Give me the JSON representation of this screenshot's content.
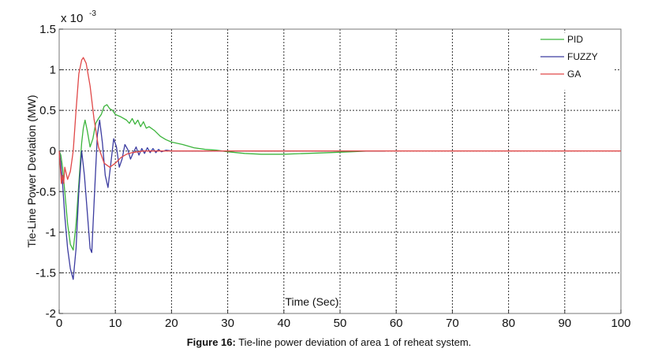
{
  "chart_data": {
    "type": "line",
    "title": "",
    "xlabel": "Time (Sec)",
    "ylabel": "Tie-Line Power Deviation (MW)",
    "y_exponent_label": "x 10",
    "y_exponent_power": "-3",
    "xlim": [
      0,
      100
    ],
    "ylim": [
      -2,
      1.5
    ],
    "x_ticks": [
      0,
      10,
      20,
      30,
      40,
      50,
      60,
      70,
      80,
      90,
      100
    ],
    "x_tick_labels": [
      "0",
      "10",
      "20",
      "30",
      "40",
      "50",
      "60",
      "70",
      "80",
      "90",
      "100"
    ],
    "y_ticks": [
      -2,
      -1.5,
      -1,
      -0.5,
      0,
      0.5,
      1,
      1.5
    ],
    "y_tick_labels": [
      "-2",
      "-1.5",
      "-1",
      "-0.5",
      "0",
      "0.5",
      "1",
      "1.5"
    ],
    "grid": true,
    "legend_position": "top-right",
    "series": [
      {
        "name": "PID",
        "color": "#3cb43c",
        "points": [
          [
            0,
            0
          ],
          [
            0.3,
            -0.05
          ],
          [
            0.6,
            -0.2
          ],
          [
            1,
            -0.5
          ],
          [
            1.5,
            -0.9
          ],
          [
            2,
            -1.15
          ],
          [
            2.5,
            -1.22
          ],
          [
            3,
            -0.9
          ],
          [
            3.5,
            -0.4
          ],
          [
            4,
            0.1
          ],
          [
            4.3,
            0.28
          ],
          [
            4.6,
            0.38
          ],
          [
            5,
            0.25
          ],
          [
            5.5,
            0.05
          ],
          [
            6,
            0.15
          ],
          [
            6.5,
            0.34
          ],
          [
            7,
            0.4
          ],
          [
            7.5,
            0.45
          ],
          [
            8,
            0.55
          ],
          [
            8.5,
            0.57
          ],
          [
            9,
            0.52
          ],
          [
            9.5,
            0.5
          ],
          [
            10,
            0.45
          ],
          [
            11,
            0.42
          ],
          [
            12,
            0.38
          ],
          [
            12.5,
            0.34
          ],
          [
            13,
            0.4
          ],
          [
            13.5,
            0.33
          ],
          [
            14,
            0.38
          ],
          [
            14.5,
            0.3
          ],
          [
            15,
            0.36
          ],
          [
            15.5,
            0.28
          ],
          [
            16,
            0.3
          ],
          [
            17,
            0.25
          ],
          [
            18,
            0.18
          ],
          [
            19,
            0.14
          ],
          [
            20,
            0.11
          ],
          [
            22,
            0.08
          ],
          [
            24,
            0.04
          ],
          [
            26,
            0.02
          ],
          [
            28,
            0.01
          ],
          [
            30,
            -0.01
          ],
          [
            33,
            -0.03
          ],
          [
            36,
            -0.04
          ],
          [
            40,
            -0.04
          ],
          [
            44,
            -0.03
          ],
          [
            48,
            -0.02
          ],
          [
            52,
            -0.01
          ],
          [
            55,
            0
          ],
          [
            58,
            0
          ]
        ]
      },
      {
        "name": "FUZZY",
        "color": "#3c3ca0",
        "points": [
          [
            0,
            0
          ],
          [
            0.3,
            -0.15
          ],
          [
            0.6,
            -0.4
          ],
          [
            1,
            -0.8
          ],
          [
            1.5,
            -1.2
          ],
          [
            2,
            -1.45
          ],
          [
            2.5,
            -1.58
          ],
          [
            3,
            -1.2
          ],
          [
            3.5,
            -0.5
          ],
          [
            4,
            0
          ],
          [
            4.5,
            -0.3
          ],
          [
            5,
            -0.75
          ],
          [
            5.5,
            -1.2
          ],
          [
            5.8,
            -1.25
          ],
          [
            6.3,
            -0.5
          ],
          [
            6.8,
            0.2
          ],
          [
            7.2,
            0.38
          ],
          [
            7.7,
            0.1
          ],
          [
            8.2,
            -0.3
          ],
          [
            8.7,
            -0.45
          ],
          [
            9.2,
            -0.15
          ],
          [
            9.7,
            0.15
          ],
          [
            10.2,
            0.05
          ],
          [
            10.7,
            -0.2
          ],
          [
            11.2,
            -0.1
          ],
          [
            11.7,
            0.08
          ],
          [
            12.2,
            0.02
          ],
          [
            12.7,
            -0.1
          ],
          [
            13.2,
            -0.02
          ],
          [
            13.7,
            0.05
          ],
          [
            14.2,
            -0.05
          ],
          [
            14.7,
            0.03
          ],
          [
            15.2,
            -0.03
          ],
          [
            15.7,
            0.04
          ],
          [
            16.2,
            -0.02
          ],
          [
            16.7,
            0.03
          ],
          [
            17.2,
            -0.02
          ],
          [
            17.7,
            0.02
          ],
          [
            18.2,
            -0.01
          ],
          [
            19,
            0.01
          ],
          [
            20,
            0
          ],
          [
            25,
            0
          ],
          [
            30,
            0
          ],
          [
            40,
            0
          ],
          [
            50,
            0
          ],
          [
            58,
            0
          ]
        ]
      },
      {
        "name": "GA",
        "color": "#e04848",
        "points": [
          [
            0,
            0
          ],
          [
            0.2,
            -0.2
          ],
          [
            0.4,
            -0.4
          ],
          [
            0.6,
            -0.3
          ],
          [
            0.8,
            -0.4
          ],
          [
            1,
            -0.2
          ],
          [
            1.5,
            -0.35
          ],
          [
            2,
            -0.25
          ],
          [
            2.5,
            0
          ],
          [
            3,
            0.5
          ],
          [
            3.5,
            0.95
          ],
          [
            4,
            1.12
          ],
          [
            4.3,
            1.15
          ],
          [
            4.8,
            1.08
          ],
          [
            5.5,
            0.8
          ],
          [
            6.2,
            0.4
          ],
          [
            7,
            0.05
          ],
          [
            8,
            -0.15
          ],
          [
            9,
            -0.2
          ],
          [
            10,
            -0.15
          ],
          [
            11,
            -0.08
          ],
          [
            12,
            -0.04
          ],
          [
            13,
            -0.02
          ],
          [
            14,
            -0.01
          ],
          [
            15,
            0
          ],
          [
            20,
            0
          ],
          [
            30,
            0
          ],
          [
            40,
            0
          ],
          [
            50,
            0
          ],
          [
            60,
            0
          ],
          [
            70,
            0
          ],
          [
            80,
            0
          ],
          [
            90,
            0
          ],
          [
            100,
            0
          ]
        ]
      }
    ]
  },
  "caption": {
    "label": "Figure 16:",
    "text": "Tie-line power deviation of area 1 of reheat system."
  }
}
